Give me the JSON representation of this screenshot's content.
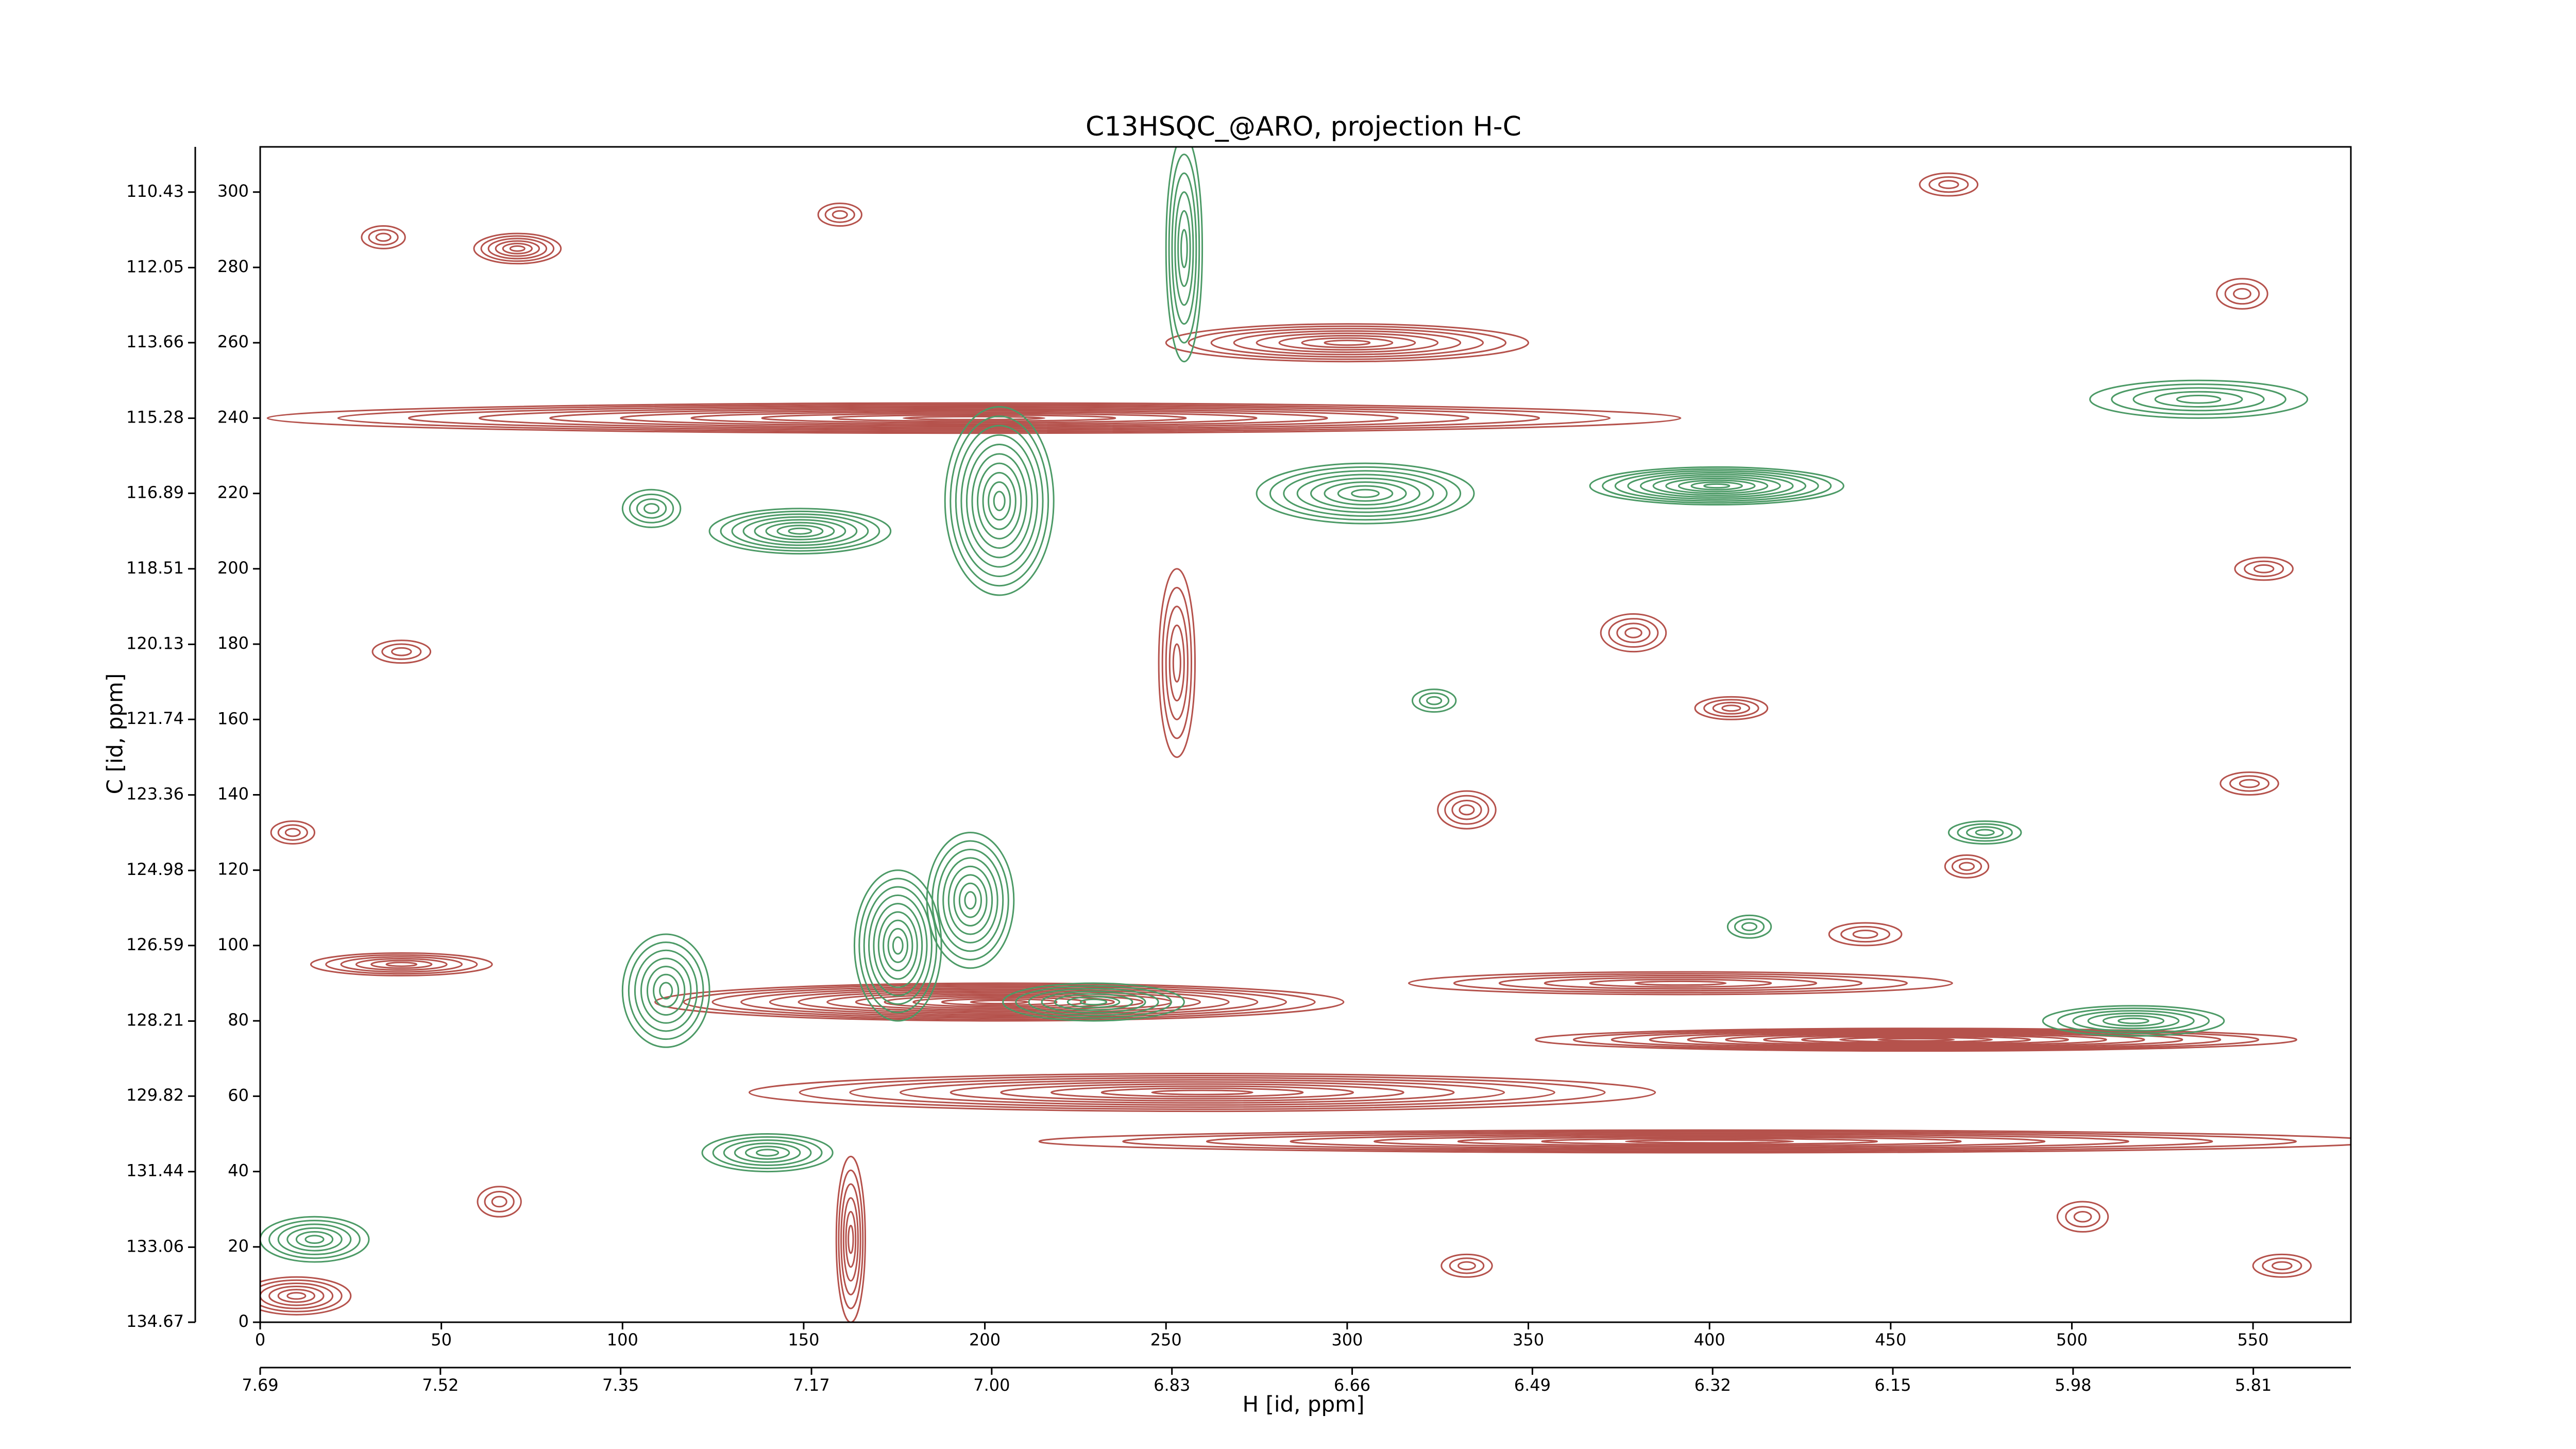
{
  "chart_data": {
    "type": "contour",
    "title": "C13HSQC_@ARO, projection H-C",
    "x_label": "H [id, ppm]",
    "y_label": "C [id, ppm]",
    "xlim": [
      0,
      577
    ],
    "xticks": [
      0,
      50,
      100,
      150,
      200,
      250,
      300,
      350,
      400,
      450,
      500,
      550
    ],
    "ylim": [
      0,
      312
    ],
    "yticks": [
      0,
      20,
      40,
      60,
      80,
      100,
      120,
      140,
      160,
      180,
      200,
      220,
      240,
      260,
      280,
      300
    ],
    "x2lim": [
      7.69,
      5.718
    ],
    "x2ticks": [
      7.69,
      7.52,
      7.35,
      7.17,
      {
        "value": 7.0,
        "label": "7.00"
      },
      6.83,
      6.66,
      6.49,
      6.32,
      6.15,
      5.98,
      5.81
    ],
    "y2lim": [
      134.67,
      109.46
    ],
    "y2ticks": [
      134.67,
      133.06,
      131.44,
      129.82,
      128.21,
      126.59,
      124.98,
      123.36,
      121.74,
      120.13,
      118.51,
      116.89,
      115.28,
      113.66,
      112.05,
      110.43
    ],
    "contours": [
      {
        "color": "#b5524c",
        "x": [
          197,
          457,
          204,
          400,
          392,
          260,
          163,
          10,
          71,
          300,
          253,
          39,
          34,
          160,
          466,
          547,
          553,
          379,
          406,
          333,
          471,
          549,
          503,
          558,
          333,
          66,
          39,
          9,
          443
        ],
        "y": [
          240,
          75,
          85,
          48,
          90,
          61,
          22,
          7,
          285,
          260,
          175,
          95,
          288,
          294,
          302,
          273,
          200,
          183,
          163,
          136,
          121,
          143,
          28,
          15,
          15,
          32,
          178,
          130,
          103
        ],
        "rx": [
          195,
          105,
          95,
          185,
          75,
          125,
          4,
          15,
          12,
          50,
          5,
          25,
          6,
          6,
          8,
          7,
          8,
          9,
          10,
          8,
          6,
          8,
          7,
          8,
          7,
          6,
          8,
          6,
          10
        ],
        "ry": [
          4,
          3,
          5,
          3,
          3,
          5,
          22,
          5,
          4,
          5,
          25,
          3,
          3,
          3,
          3,
          4,
          3,
          5,
          3,
          5,
          3,
          3,
          4,
          3,
          3,
          4,
          3,
          3,
          3
        ],
        "levels": [
          10,
          10,
          12,
          8,
          6,
          9,
          6,
          6,
          6,
          8,
          5,
          6,
          3,
          3,
          3,
          3,
          3,
          4,
          4,
          4,
          3,
          3,
          3,
          3,
          3,
          3,
          3,
          3,
          3
        ]
      },
      {
        "color": "#4c9a66",
        "x": [
          255,
          402,
          149,
          204,
          176,
          196,
          305,
          517,
          535,
          15,
          112,
          140,
          230,
          108,
          411,
          476,
          324
        ],
        "y": [
          285,
          222,
          210,
          218,
          100,
          112,
          220,
          80,
          245,
          22,
          88,
          45,
          85,
          216,
          105,
          130,
          165
        ],
        "rx": [
          5,
          35,
          25,
          15,
          12,
          12,
          30,
          25,
          30,
          15,
          12,
          18,
          25,
          8,
          6,
          10,
          6
        ],
        "ry": [
          30,
          5,
          6,
          25,
          20,
          18,
          8,
          4,
          5,
          6,
          15,
          5,
          5,
          5,
          3,
          3,
          3
        ],
        "levels": [
          6,
          10,
          8,
          10,
          9,
          8,
          8,
          6,
          5,
          6,
          7,
          6,
          7,
          4,
          3,
          4,
          3
        ]
      }
    ]
  }
}
